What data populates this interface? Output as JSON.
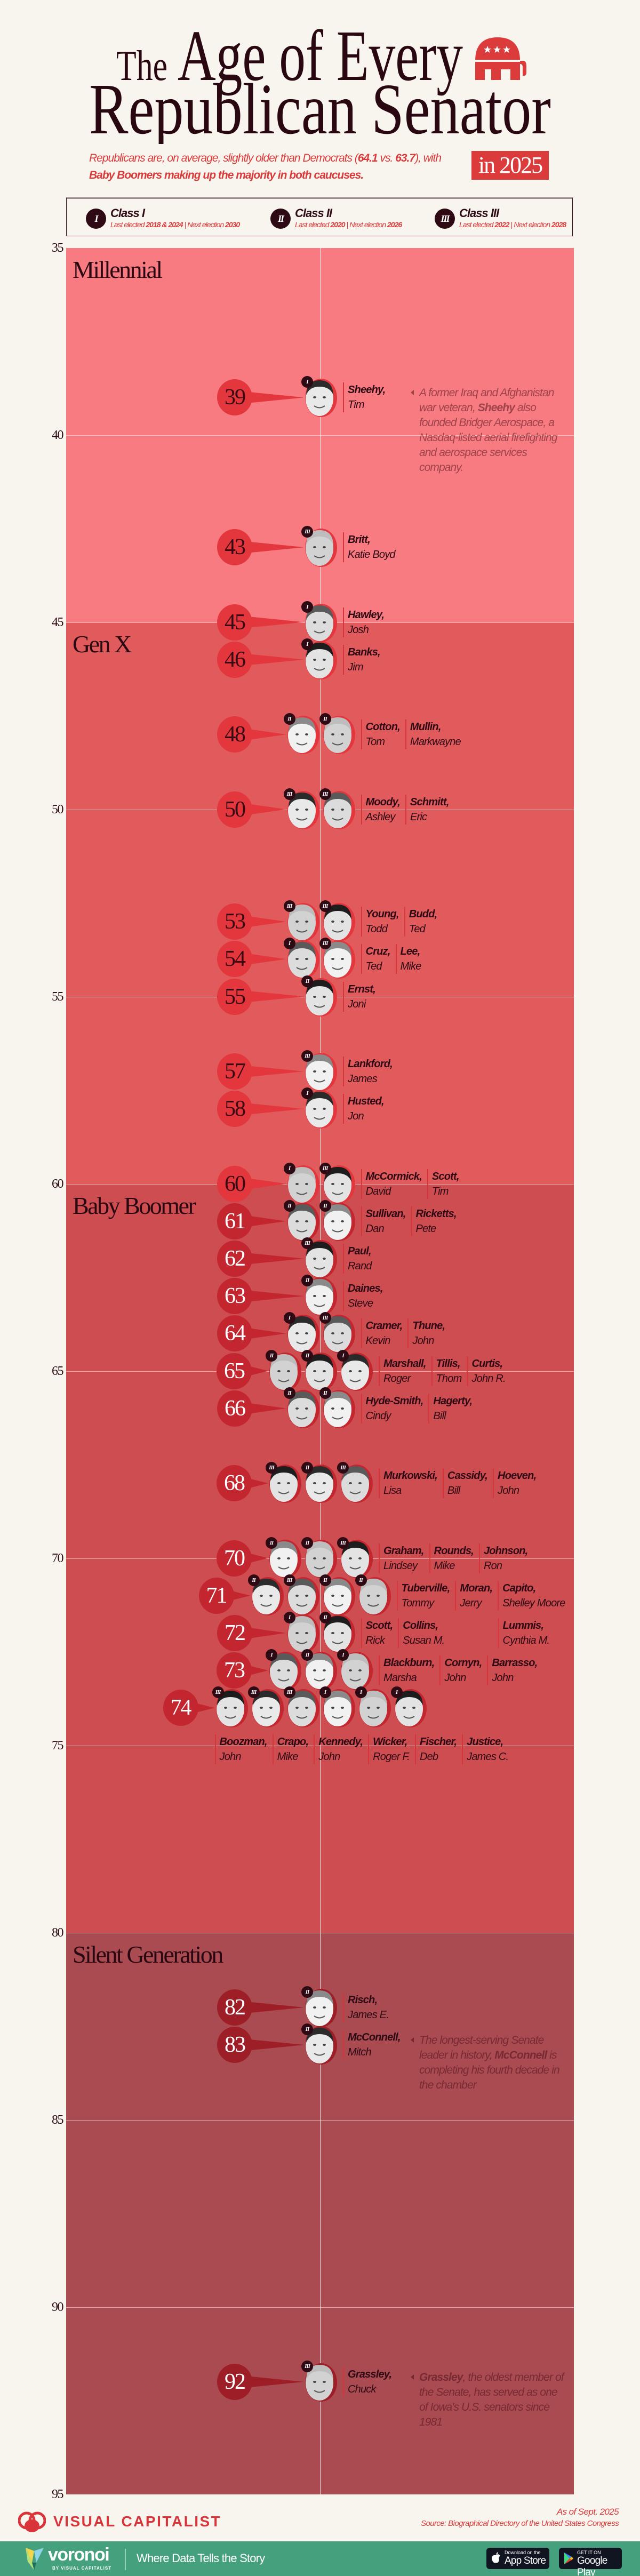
{
  "header": {
    "title_the": "The",
    "title_line1": "Age of Every",
    "title_line2": "Republican Senator",
    "year_badge": "in 2025",
    "subtitle": [
      {
        "text": "Republicans are, on average, slightly older than Democrats (",
        "bold": false
      },
      {
        "text": "64.1",
        "bold": true
      },
      {
        "text": " vs. ",
        "bold": false
      },
      {
        "text": "63.7",
        "bold": true
      },
      {
        "text": "), with ",
        "bold": false
      },
      {
        "text": "Baby Boomers making up the majority in both caucuses.",
        "bold": true
      }
    ]
  },
  "legend": {
    "classes": [
      {
        "numeral": "I",
        "label": "Class I",
        "last_elected_label": "Last elected",
        "last_elected": "2018 & 2024",
        "separator": "|",
        "next_label": "Next election",
        "next": "2030"
      },
      {
        "numeral": "II",
        "label": "Class II",
        "last_elected_label": "Last elected",
        "last_elected": "2020",
        "separator": "|",
        "next_label": "Next election",
        "next": "2026"
      },
      {
        "numeral": "III",
        "label": "Class III",
        "last_elected_label": "Last elected",
        "last_elected": "2022",
        "separator": "|",
        "next_label": "Next election",
        "next": "2028"
      }
    ]
  },
  "chart_data": {
    "type": "scatter",
    "title": "The Age of Every Republican Senator in 2025",
    "ylabel": "Age",
    "y_range": [
      35,
      95
    ],
    "y_ticks": [
      "35",
      "40",
      "45",
      "50",
      "55",
      "60",
      "65",
      "70",
      "75",
      "80",
      "85",
      "90",
      "95"
    ],
    "grid": true,
    "generations": [
      {
        "name": "Millennial",
        "from": 35,
        "to": 45,
        "color": "#F77B80",
        "bubble_color": "#E3363D",
        "bubble_text": "#3A0A12"
      },
      {
        "name": "Gen X",
        "from": 45,
        "to": 60,
        "color": "#E15B5D",
        "bubble_color": "#E3363D",
        "bubble_text": "#3A0A12"
      },
      {
        "name": "Baby Boomer",
        "from": 60,
        "to": 80,
        "color": "#CD4D50",
        "bubble_color": "#C4262F",
        "bubble_text": "#FFFFFF"
      },
      {
        "name": "Silent Generation",
        "from": 80,
        "to": 95,
        "color": "#A94B50",
        "bubble_color": "#9E1E28",
        "bubble_text": "#FFFFFF"
      }
    ],
    "rows": [
      {
        "age": "39",
        "senators": [
          {
            "last": "Sheehy,",
            "first": "Tim",
            "class": "I"
          }
        ],
        "annotation": [
          {
            "text": "A former Iraq and Afghanistan war veteran, ",
            "bold": false
          },
          {
            "text": "Sheehy",
            "bold": true
          },
          {
            "text": " also founded Bridger Aerospace, a Nasdaq-listed aerial firefighting and aerospace services company.",
            "bold": false
          }
        ]
      },
      {
        "age": "43",
        "senators": [
          {
            "last": "Britt,",
            "first": "Katie Boyd",
            "class": "III"
          }
        ]
      },
      {
        "age": "45",
        "senators": [
          {
            "last": "Hawley,",
            "first": "Josh",
            "class": "I"
          }
        ]
      },
      {
        "age": "46",
        "senators": [
          {
            "last": "Banks,",
            "first": "Jim",
            "class": "I"
          }
        ]
      },
      {
        "age": "48",
        "senators": [
          {
            "last": "Cotton,",
            "first": "Tom",
            "class": "II"
          },
          {
            "last": "Mullin,",
            "first": "Markwayne",
            "class": "II"
          }
        ]
      },
      {
        "age": "50",
        "senators": [
          {
            "last": "Moody,",
            "first": "Ashley",
            "class": "III"
          },
          {
            "last": "Schmitt,",
            "first": "Eric",
            "class": "III"
          }
        ]
      },
      {
        "age": "53",
        "senators": [
          {
            "last": "Young,",
            "first": "Todd",
            "class": "III"
          },
          {
            "last": "Budd,",
            "first": "Ted",
            "class": "III"
          }
        ]
      },
      {
        "age": "54",
        "senators": [
          {
            "last": "Cruz,",
            "first": "Ted",
            "class": "I"
          },
          {
            "last": "Lee,",
            "first": "Mike",
            "class": "III"
          }
        ]
      },
      {
        "age": "55",
        "senators": [
          {
            "last": "Ernst,",
            "first": "Joni",
            "class": "II"
          }
        ]
      },
      {
        "age": "57",
        "senators": [
          {
            "last": "Lankford,",
            "first": "James",
            "class": "III"
          }
        ]
      },
      {
        "age": "58",
        "senators": [
          {
            "last": "Husted,",
            "first": "Jon",
            "class": "I"
          }
        ]
      },
      {
        "age": "60",
        "senators": [
          {
            "last": "McCormick,",
            "first": "David",
            "class": "I"
          },
          {
            "last": "Scott,",
            "first": "Tim",
            "class": "III"
          }
        ]
      },
      {
        "age": "61",
        "senators": [
          {
            "last": "Sullivan,",
            "first": "Dan",
            "class": "II"
          },
          {
            "last": "Ricketts,",
            "first": "Pete",
            "class": "II"
          }
        ]
      },
      {
        "age": "62",
        "senators": [
          {
            "last": "Paul,",
            "first": "Rand",
            "class": "III"
          }
        ]
      },
      {
        "age": "63",
        "senators": [
          {
            "last": "Daines,",
            "first": "Steve",
            "class": "II"
          }
        ]
      },
      {
        "age": "64",
        "senators": [
          {
            "last": "Cramer,",
            "first": "Kevin",
            "class": "I"
          },
          {
            "last": "Thune,",
            "first": "John",
            "class": "III"
          }
        ]
      },
      {
        "age": "65",
        "senators": [
          {
            "last": "Marshall,",
            "first": "Roger",
            "class": "II"
          },
          {
            "last": "Tillis,",
            "first": "Thom",
            "class": "II"
          },
          {
            "last": "Curtis,",
            "first": "John R.",
            "class": "I"
          }
        ]
      },
      {
        "age": "66",
        "senators": [
          {
            "last": "Hyde-Smith,",
            "first": "Cindy",
            "class": "II"
          },
          {
            "last": "Hagerty,",
            "first": "Bill",
            "class": "II"
          }
        ]
      },
      {
        "age": "68",
        "senators": [
          {
            "last": "Murkowski,",
            "first": "Lisa",
            "class": "III"
          },
          {
            "last": "Cassidy,",
            "first": "Bill",
            "class": "II"
          },
          {
            "last": "Hoeven,",
            "first": "John",
            "class": "III"
          }
        ]
      },
      {
        "age": "70",
        "senators": [
          {
            "last": "Graham,",
            "first": "Lindsey",
            "class": "II"
          },
          {
            "last": "Rounds,",
            "first": "Mike",
            "class": "II"
          },
          {
            "last": "Johnson,",
            "first": "Ron",
            "class": "III"
          }
        ]
      },
      {
        "age": "71",
        "senators": [
          {
            "last": "Tuberville,",
            "first": "Tommy",
            "class": "II"
          },
          {
            "last": "Moran,",
            "first": "Jerry",
            "class": "III"
          },
          {
            "last": "Capito,",
            "first": "Shelley Moore",
            "class": "II"
          },
          {
            "last": "Lummis,",
            "first": "Cynthia M.",
            "class": "II"
          }
        ]
      },
      {
        "age": "72",
        "senators": [
          {
            "last": "Scott,",
            "first": "Rick",
            "class": "I"
          },
          {
            "last": "Collins,",
            "first": "Susan M.",
            "class": "II"
          }
        ]
      },
      {
        "age": "73",
        "senators": [
          {
            "last": "Blackburn,",
            "first": "Marsha",
            "class": "I"
          },
          {
            "last": "Cornyn,",
            "first": "John",
            "class": "II"
          },
          {
            "last": "Barrasso,",
            "first": "John",
            "class": "I"
          }
        ]
      },
      {
        "age": "74",
        "senators": [
          {
            "last": "Boozman,",
            "first": "John",
            "class": "III"
          },
          {
            "last": "Crapo,",
            "first": "Mike",
            "class": "III"
          },
          {
            "last": "Kennedy,",
            "first": "John",
            "class": "III"
          },
          {
            "last": "Wicker,",
            "first": "Roger F.",
            "class": "I"
          },
          {
            "last": "Fischer,",
            "first": "Deb",
            "class": "I"
          },
          {
            "last": "Justice,",
            "first": "James C.",
            "class": "I"
          }
        ]
      },
      {
        "age": "82",
        "senators": [
          {
            "last": "Risch,",
            "first": "James E.",
            "class": "II"
          }
        ]
      },
      {
        "age": "83",
        "senators": [
          {
            "last": "McConnell,",
            "first": "Mitch",
            "class": "II"
          }
        ],
        "annotation": [
          {
            "text": "The longest-serving Senate leader in history, ",
            "bold": false
          },
          {
            "text": "McConnell",
            "bold": true
          },
          {
            "text": " is completing his fourth decade in the chamber",
            "bold": false
          }
        ]
      },
      {
        "age": "92",
        "senators": [
          {
            "last": "Grassley,",
            "first": "Chuck",
            "class": "III"
          }
        ],
        "annotation": [
          {
            "text": "Grassley",
            "bold": true
          },
          {
            "text": ", the oldest member of the Senate, has served as one of Iowa's U.S. senators since 1981",
            "bold": false
          }
        ]
      }
    ]
  },
  "credits": {
    "as_of": "As of Sept. 2025",
    "source": "Source: Biographical Directory of the United States Congress",
    "brand": "VISUAL CAPITALIST"
  },
  "footer": {
    "logo": "voronoi",
    "logo_sub": "BY VISUAL CAPITALIST",
    "tagline": "Where Data Tells the Story",
    "app_store_small": "Download on the",
    "app_store_big": "App Store",
    "google_small": "GET IT ON",
    "google_big": "Google Play"
  },
  "colors": {
    "brand_red": "#D93A3A",
    "dark": "#2A0812",
    "footer_green": "#45A07E"
  }
}
